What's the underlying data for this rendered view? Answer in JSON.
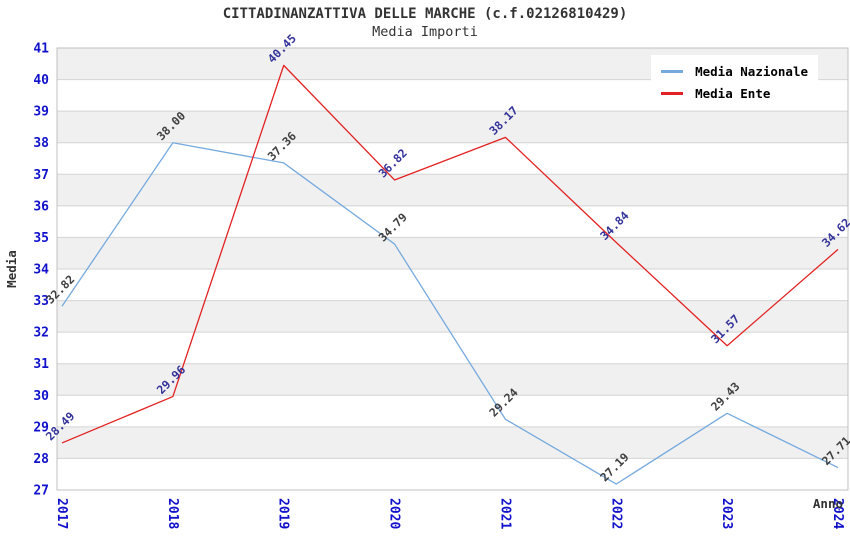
{
  "chart_data": {
    "type": "line",
    "title": "CITTADINANZATTIVA DELLE MARCHE (c.f.02126810429)",
    "subtitle": "Media Importi",
    "xlabel": "Anno",
    "ylabel": "Media",
    "x": [
      2017,
      2018,
      2019,
      2020,
      2021,
      2022,
      2023,
      2024
    ],
    "series": [
      {
        "name": "Media Nazionale",
        "color": "#76aade",
        "label_color": "#404040",
        "values": [
          32.82,
          38.0,
          37.36,
          34.79,
          29.24,
          27.19,
          29.43,
          27.71
        ]
      },
      {
        "name": "Media Ente",
        "color": "#e22222",
        "label_color": "#333399",
        "values": [
          28.49,
          29.96,
          40.45,
          36.82,
          38.17,
          34.84,
          31.57,
          34.62
        ]
      }
    ],
    "ylim": [
      27,
      41
    ],
    "ytick_step": 1,
    "grid": true,
    "bands": "alternating horizontal gray/white stripes per 1 unit",
    "legend_position": "top-right",
    "data_labels": "value at each point, 2 decimals, rotated 45 degrees"
  },
  "colors": {
    "tick_label": "#1111cc",
    "grid_line": "#d4d4d4",
    "band_fill": "#f0f0f0",
    "plot_border": "#c0c0c0",
    "title_text": "#333333",
    "background": "#ffffff"
  }
}
